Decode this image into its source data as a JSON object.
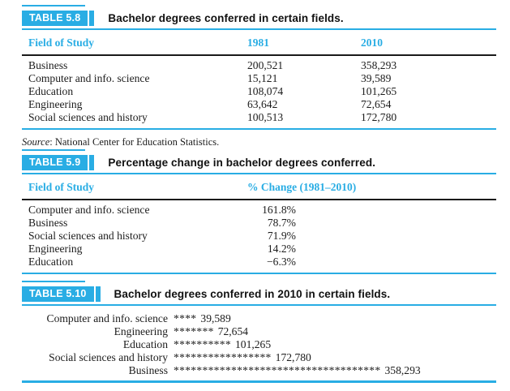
{
  "colors": {
    "accent_cyan": "#29ade4",
    "rule_dark": "#1a1a1a",
    "text": "#1c1c1c",
    "label_text": "#ffffff"
  },
  "tables": [
    {
      "label": "TABLE 5.8",
      "title": "Bachelor degrees conferred in certain fields.",
      "columns": [
        "Field of Study",
        "1981",
        "2010"
      ],
      "rows": [
        [
          "Business",
          "200,521",
          "358,293"
        ],
        [
          "Computer and info. science",
          "15,121",
          "39,589"
        ],
        [
          "Education",
          "108,074",
          "101,265"
        ],
        [
          "Engineering",
          "63,642",
          "72,654"
        ],
        [
          "Social sciences and history",
          "100,513",
          "172,780"
        ]
      ],
      "source_prefix": "Source",
      "source_text": ": National Center for Education Statistics."
    },
    {
      "label": "TABLE 5.9",
      "title": "Percentage change in bachelor degrees conferred.",
      "columns": [
        "Field of Study",
        "% Change (1981–2010)"
      ],
      "rows": [
        [
          "Computer and info. science",
          "161.8%"
        ],
        [
          "Business",
          "78.7%"
        ],
        [
          "Social sciences and history",
          "71.9%"
        ],
        [
          "Engineering",
          "14.2%"
        ],
        [
          "Education",
          "−6.3%"
        ]
      ]
    },
    {
      "label": "TABLE 5.10",
      "title": "Bachelor degrees conferred in 2010 in certain fields.",
      "rows": [
        {
          "field": "Computer and info. science",
          "stars": "****",
          "value": "39,589"
        },
        {
          "field": "Engineering",
          "stars": "*******",
          "value": "72,654"
        },
        {
          "field": "Education",
          "stars": "**********",
          "value": "101,265"
        },
        {
          "field": "Social sciences and history",
          "stars": "*****************",
          "value": "172,780"
        },
        {
          "field": "Business",
          "stars": "************************************",
          "value": "358,293"
        }
      ]
    }
  ]
}
